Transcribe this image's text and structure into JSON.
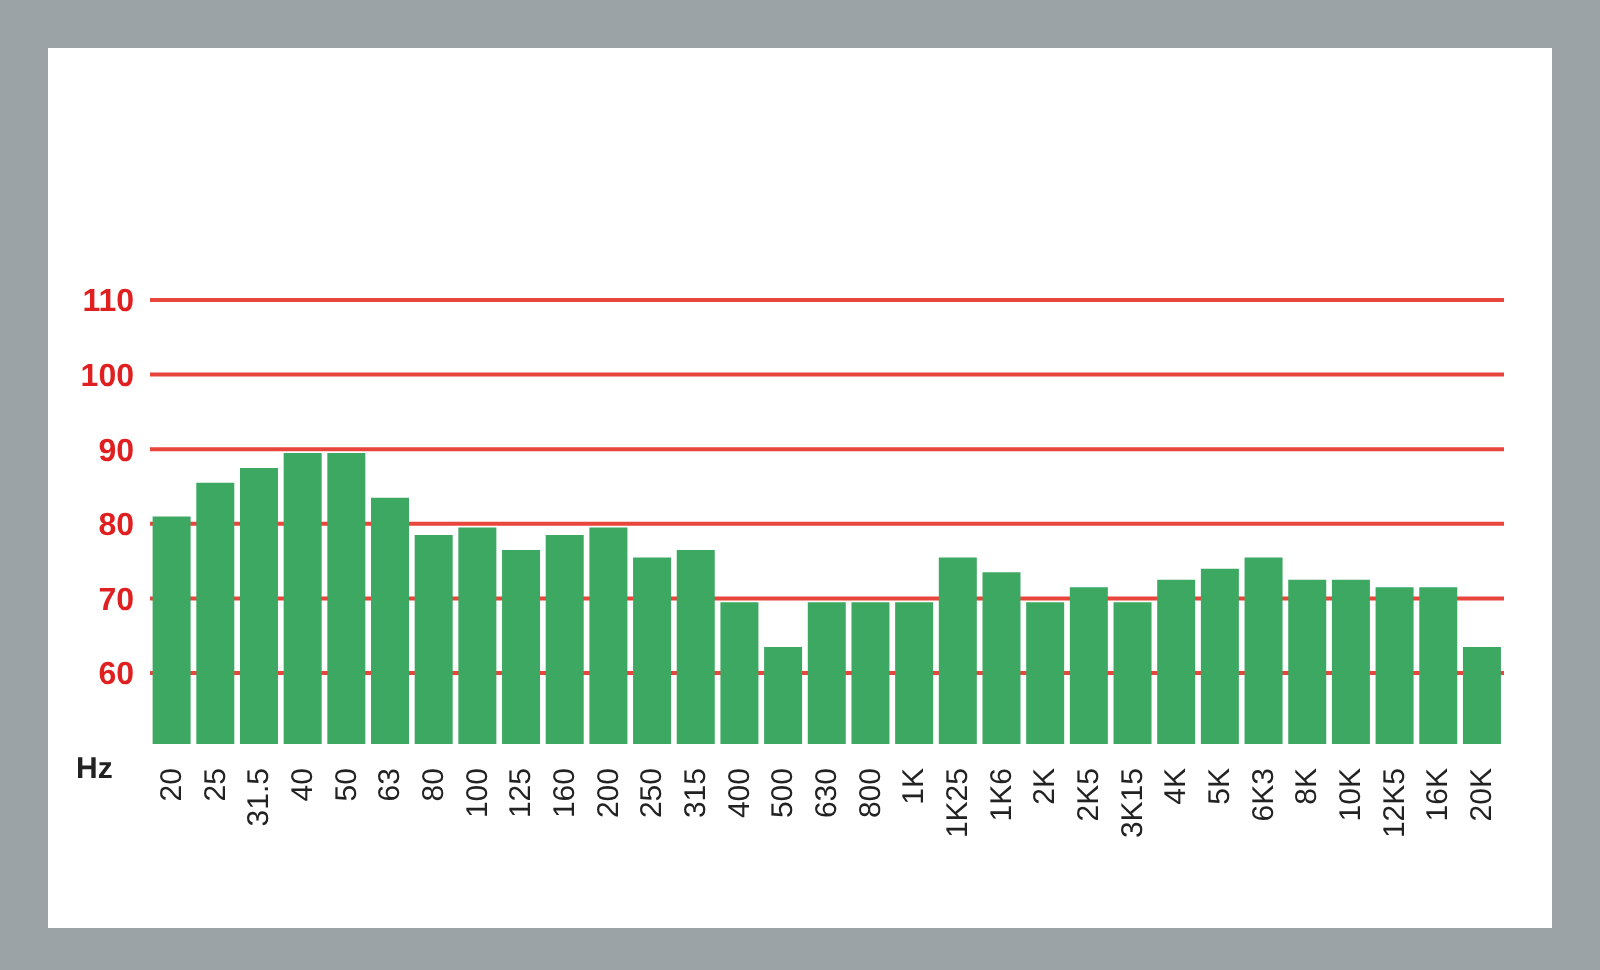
{
  "chart_data": {
    "type": "bar",
    "xlabel": "Hz",
    "categories": [
      "20",
      "25",
      "31.5",
      "40",
      "50",
      "63",
      "80",
      "100",
      "125",
      "160",
      "200",
      "250",
      "315",
      "400",
      "500",
      "630",
      "800",
      "1K",
      "1K25",
      "1K6",
      "2K",
      "2K5",
      "3K15",
      "4K",
      "5K",
      "6K3",
      "8K",
      "10K",
      "12K5",
      "16K",
      "20K"
    ],
    "values": [
      81,
      85.5,
      87.5,
      89.5,
      89.5,
      83.5,
      78.5,
      79.5,
      76.5,
      78.5,
      79.5,
      75.5,
      76.5,
      69.5,
      63.5,
      69.5,
      69.5,
      69.5,
      75.5,
      73.5,
      69.5,
      71.5,
      69.5,
      72.5,
      74,
      75.5,
      72.5,
      72.5,
      71.5,
      71.5,
      63.5
    ],
    "color": "#3da862",
    "ylim": [
      50.5,
      110
    ],
    "yticks": [
      60,
      70,
      80,
      90,
      100,
      110
    ],
    "grid": "y"
  }
}
